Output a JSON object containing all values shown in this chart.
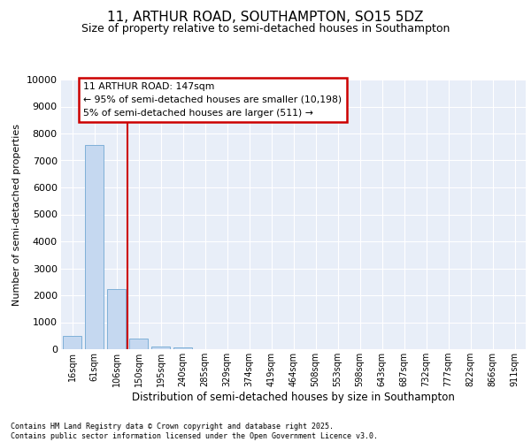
{
  "title": "11, ARTHUR ROAD, SOUTHAMPTON, SO15 5DZ",
  "subtitle": "Size of property relative to semi-detached houses in Southampton",
  "xlabel": "Distribution of semi-detached houses by size in Southampton",
  "ylabel": "Number of semi-detached properties",
  "categories": [
    "16sqm",
    "61sqm",
    "106sqm",
    "150sqm",
    "195sqm",
    "240sqm",
    "285sqm",
    "329sqm",
    "374sqm",
    "419sqm",
    "464sqm",
    "508sqm",
    "553sqm",
    "598sqm",
    "643sqm",
    "687sqm",
    "732sqm",
    "777sqm",
    "822sqm",
    "866sqm",
    "911sqm"
  ],
  "values": [
    490,
    7580,
    2220,
    380,
    100,
    80,
    0,
    0,
    0,
    0,
    0,
    0,
    0,
    0,
    0,
    0,
    0,
    0,
    0,
    0,
    0
  ],
  "bar_color": "#c5d8f0",
  "bar_edge_color": "#7fb0d8",
  "vline_x": 3.0,
  "vline_color": "#cc0000",
  "annotation_line1": "11 ARTHUR ROAD: 147sqm",
  "annotation_line2": "← 95% of semi-detached houses are smaller (10,198)",
  "annotation_line3": "5% of semi-detached houses are larger (511) →",
  "annotation_box_color": "#cc0000",
  "ylim": [
    0,
    10000
  ],
  "yticks": [
    0,
    1000,
    2000,
    3000,
    4000,
    5000,
    6000,
    7000,
    8000,
    9000,
    10000
  ],
  "bg_color": "#e8eef8",
  "grid_color": "#ffffff",
  "footer_line1": "Contains HM Land Registry data © Crown copyright and database right 2025.",
  "footer_line2": "Contains public sector information licensed under the Open Government Licence v3.0."
}
